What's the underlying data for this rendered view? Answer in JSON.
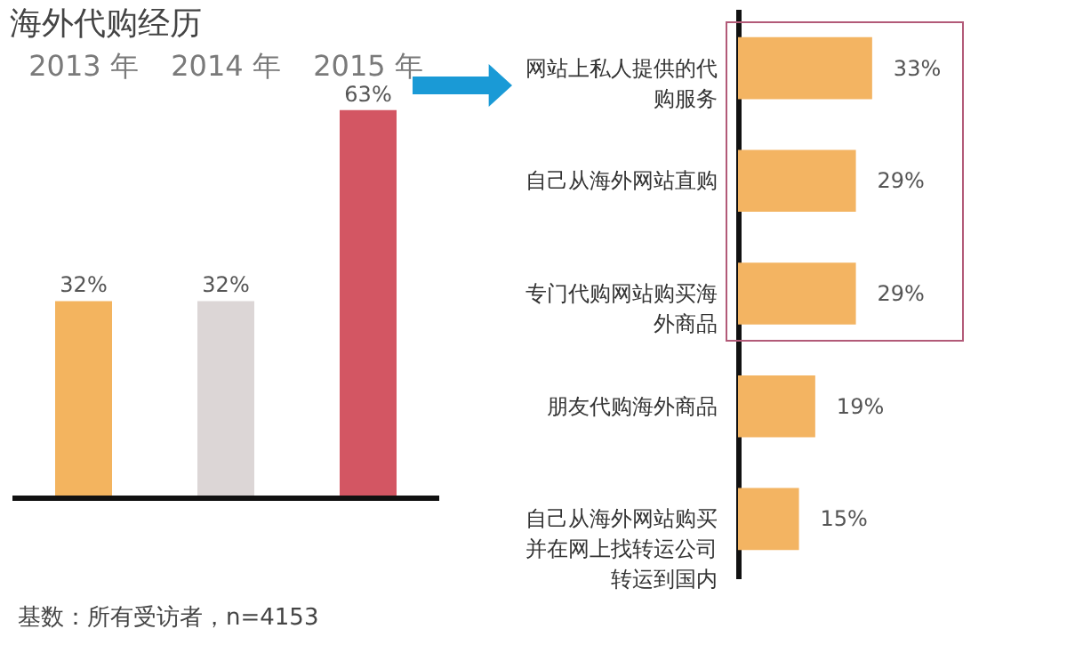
{
  "chart_data": [
    {
      "type": "bar",
      "title": "海外代购经历",
      "categories": [
        "2013 年",
        "2014 年",
        "2015 年"
      ],
      "values": [
        32,
        32,
        63
      ],
      "colors": [
        "#f3b45f",
        "#dcd6d6",
        "#d35663"
      ],
      "value_labels": [
        "32%",
        "32%",
        "63%"
      ],
      "annotations": [
        "基数：所有受访者，n=4153"
      ]
    },
    {
      "type": "bar",
      "orientation": "horizontal",
      "categories": [
        "网站上私人提供的代购服务",
        "自己从海外网站直购",
        "专门代购网站购买海外商品",
        "朋友代购海外商品",
        "自己从海外网站购买并在网上找转运公司转运到国内"
      ],
      "values": [
        33,
        29,
        29,
        19,
        15
      ],
      "color": "#f3b462",
      "value_labels": [
        "33%",
        "29%",
        "29%",
        "19%",
        "15%"
      ]
    }
  ]
}
